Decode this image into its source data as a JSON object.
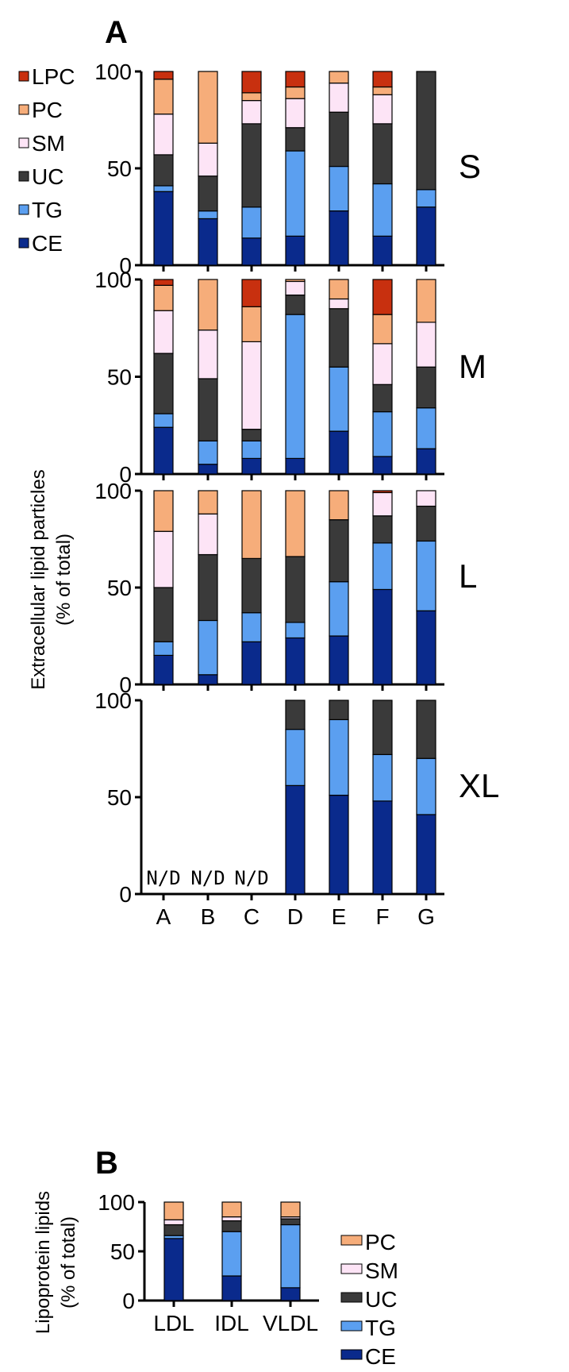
{
  "panel_labels": {
    "a": "A",
    "b": "B"
  },
  "panel_a": {
    "ylabel_line1": "Extracellular lipid particles",
    "ylabel_line2": "(% of total)",
    "legend": [
      {
        "label": "LPC",
        "color": "#c8300f"
      },
      {
        "label": "PC",
        "color": "#f6ad7a"
      },
      {
        "label": "SM",
        "color": "#fde4f6"
      },
      {
        "label": "UC",
        "color": "#3a3a3a"
      },
      {
        "label": "TG",
        "color": "#5b9ff0"
      },
      {
        "label": "CE",
        "color": "#0a2a8c"
      }
    ]
  },
  "panel_b": {
    "ylabel_line1": "Lipoprotein lipids",
    "ylabel_line2": "(% of total)",
    "legend": [
      {
        "label": "PC",
        "color": "#f6ad7a"
      },
      {
        "label": "SM",
        "color": "#fde4f6"
      },
      {
        "label": "UC",
        "color": "#3a3a3a"
      },
      {
        "label": "TG",
        "color": "#5b9ff0"
      },
      {
        "label": "CE",
        "color": "#0a2a8c"
      }
    ]
  },
  "chart_data": [
    {
      "type": "bar",
      "stacked": true,
      "panel": "A",
      "subpanel": "S",
      "categories": [
        "A",
        "B",
        "C",
        "D",
        "E",
        "F",
        "G"
      ],
      "ylim": [
        0,
        100
      ],
      "yticks": [
        0,
        50,
        100
      ],
      "series": [
        {
          "name": "CE",
          "values": [
            38,
            24,
            14,
            15,
            28,
            15,
            30
          ]
        },
        {
          "name": "TG",
          "values": [
            3,
            4,
            16,
            44,
            23,
            27,
            9
          ]
        },
        {
          "name": "UC",
          "values": [
            16,
            18,
            43,
            12,
            28,
            31,
            61
          ]
        },
        {
          "name": "SM",
          "values": [
            21,
            17,
            12,
            15,
            15,
            15,
            0
          ]
        },
        {
          "name": "PC",
          "values": [
            18,
            37,
            4,
            6,
            6,
            4,
            0
          ]
        },
        {
          "name": "LPC",
          "values": [
            4,
            0,
            11,
            8,
            0,
            8,
            0
          ]
        }
      ]
    },
    {
      "type": "bar",
      "stacked": true,
      "panel": "A",
      "subpanel": "M",
      "categories": [
        "A",
        "B",
        "C",
        "D",
        "E",
        "F",
        "G"
      ],
      "ylim": [
        0,
        100
      ],
      "yticks": [
        0,
        50,
        100
      ],
      "series": [
        {
          "name": "CE",
          "values": [
            24,
            5,
            8,
            8,
            22,
            9,
            13
          ]
        },
        {
          "name": "TG",
          "values": [
            7,
            12,
            9,
            74,
            33,
            23,
            21
          ]
        },
        {
          "name": "UC",
          "values": [
            31,
            32,
            6,
            10,
            30,
            14,
            21
          ]
        },
        {
          "name": "SM",
          "values": [
            22,
            25,
            45,
            7,
            5,
            21,
            23
          ]
        },
        {
          "name": "PC",
          "values": [
            13,
            26,
            18,
            1,
            10,
            15,
            22
          ]
        },
        {
          "name": "LPC",
          "values": [
            3,
            0,
            14,
            0,
            0,
            18,
            0
          ]
        }
      ]
    },
    {
      "type": "bar",
      "stacked": true,
      "panel": "A",
      "subpanel": "L",
      "categories": [
        "A",
        "B",
        "C",
        "D",
        "E",
        "F",
        "G"
      ],
      "ylim": [
        0,
        100
      ],
      "yticks": [
        0,
        50,
        100
      ],
      "series": [
        {
          "name": "CE",
          "values": [
            15,
            5,
            22,
            24,
            25,
            49,
            38
          ]
        },
        {
          "name": "TG",
          "values": [
            7,
            28,
            15,
            8,
            28,
            24,
            36
          ]
        },
        {
          "name": "UC",
          "values": [
            28,
            34,
            28,
            34,
            32,
            14,
            18
          ]
        },
        {
          "name": "SM",
          "values": [
            29,
            21,
            0,
            0,
            0,
            12,
            8
          ]
        },
        {
          "name": "PC",
          "values": [
            21,
            12,
            35,
            34,
            15,
            0,
            0
          ]
        },
        {
          "name": "LPC",
          "values": [
            0,
            0,
            0,
            0,
            0,
            1,
            0
          ]
        }
      ]
    },
    {
      "type": "bar",
      "stacked": true,
      "panel": "A",
      "subpanel": "XL",
      "categories": [
        "A",
        "B",
        "C",
        "D",
        "E",
        "F",
        "G"
      ],
      "not_detected_label": "N/D",
      "not_detected": [
        "A",
        "B",
        "C"
      ],
      "ylim": [
        0,
        100
      ],
      "yticks": [
        0,
        50,
        100
      ],
      "series": [
        {
          "name": "CE",
          "values": [
            0,
            0,
            0,
            56,
            51,
            48,
            41
          ]
        },
        {
          "name": "TG",
          "values": [
            0,
            0,
            0,
            29,
            39,
            24,
            29
          ]
        },
        {
          "name": "UC",
          "values": [
            0,
            0,
            0,
            15,
            10,
            28,
            30
          ]
        },
        {
          "name": "SM",
          "values": [
            0,
            0,
            0,
            0,
            0,
            0,
            0
          ]
        },
        {
          "name": "PC",
          "values": [
            0,
            0,
            0,
            0,
            0,
            0,
            0
          ]
        },
        {
          "name": "LPC",
          "values": [
            0,
            0,
            0,
            0,
            0,
            0,
            0
          ]
        }
      ]
    },
    {
      "type": "bar",
      "stacked": true,
      "panel": "B",
      "categories": [
        "LDL",
        "IDL",
        "VLDL"
      ],
      "ylim": [
        0,
        100
      ],
      "yticks": [
        0,
        50,
        100
      ],
      "series": [
        {
          "name": "CE",
          "values": [
            63,
            25,
            13
          ]
        },
        {
          "name": "TG",
          "values": [
            3,
            45,
            64
          ]
        },
        {
          "name": "UC",
          "values": [
            11,
            11,
            6
          ]
        },
        {
          "name": "SM",
          "values": [
            5,
            4,
            2
          ]
        },
        {
          "name": "PC",
          "values": [
            18,
            15,
            15
          ]
        }
      ]
    }
  ]
}
